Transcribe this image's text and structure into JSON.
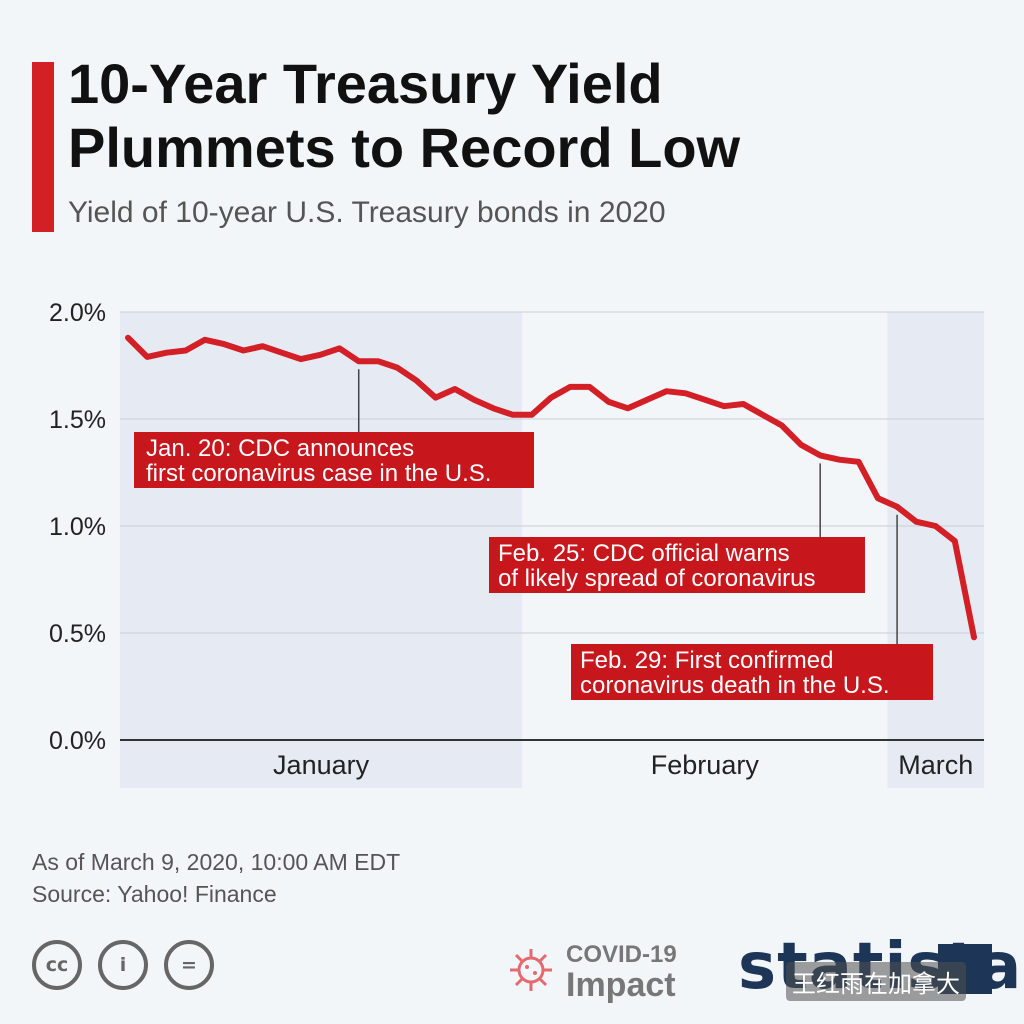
{
  "header": {
    "title_line1": "10-Year Treasury Yield",
    "title_line2": "Plummets to Record Low",
    "subtitle": "Yield of 10-year U.S. Treasury bonds in 2020"
  },
  "colors": {
    "accent": "#d31f26",
    "line": "#d31f26",
    "band": "#e6ebf3",
    "grid": "#c9ced6",
    "annotation_bg": "#c8161d",
    "brand": "#1d3557"
  },
  "chart_data": {
    "type": "line",
    "series": [
      {
        "values": [
          1.88,
          1.79,
          1.81,
          1.82,
          1.87,
          1.85,
          1.82,
          1.84,
          1.81,
          1.78,
          1.8,
          1.83,
          1.77,
          1.77,
          1.74,
          1.68,
          1.6,
          1.64,
          1.59,
          1.55,
          1.52,
          1.52,
          1.6,
          1.65,
          1.65,
          1.58,
          1.55,
          1.59,
          1.63,
          1.62,
          1.59,
          1.56,
          1.57,
          1.52,
          1.47,
          1.38,
          1.33,
          1.31,
          1.3,
          1.13,
          1.09,
          1.02,
          1.0,
          0.93,
          0.48
        ]
      }
    ],
    "ylim": [
      0,
      2.0
    ],
    "yticks": [
      "0.0%",
      "0.5%",
      "1.0%",
      "1.5%",
      "2.0%"
    ],
    "ytick_values": [
      0,
      0.5,
      1.0,
      1.5,
      2.0
    ],
    "months": [
      {
        "label": "January",
        "start": 0,
        "end": 21,
        "shaded": true
      },
      {
        "label": "February",
        "start": 21,
        "end": 40,
        "shaded": false
      },
      {
        "label": "March",
        "start": 40,
        "end": 44,
        "shaded": true
      }
    ],
    "annotations": [
      {
        "line1": "Jan. 20: CDC announces",
        "line2": "first coronavirus case in the U.S.",
        "index": 12
      },
      {
        "line1": "Feb. 25: CDC official warns",
        "line2": "of likely spread of coronavirus",
        "index": 36
      },
      {
        "line1": "Feb. 29: First confirmed",
        "line2": "coronavirus death in the U.S.",
        "index": 40
      }
    ],
    "grid": true
  },
  "footer": {
    "as_of": "As of March 9, 2020, 10:00 AM EDT",
    "source": "Source: Yahoo! Finance"
  },
  "badges": {
    "cc_icons": [
      "cc-icon",
      "attribution-icon",
      "no-derivatives-icon"
    ],
    "cc_labels": [
      "cc",
      "i",
      "="
    ],
    "covid_line1": "COVID-19",
    "covid_line2": "Impact",
    "brand": "statista",
    "watermark": "王红雨在加拿大"
  }
}
